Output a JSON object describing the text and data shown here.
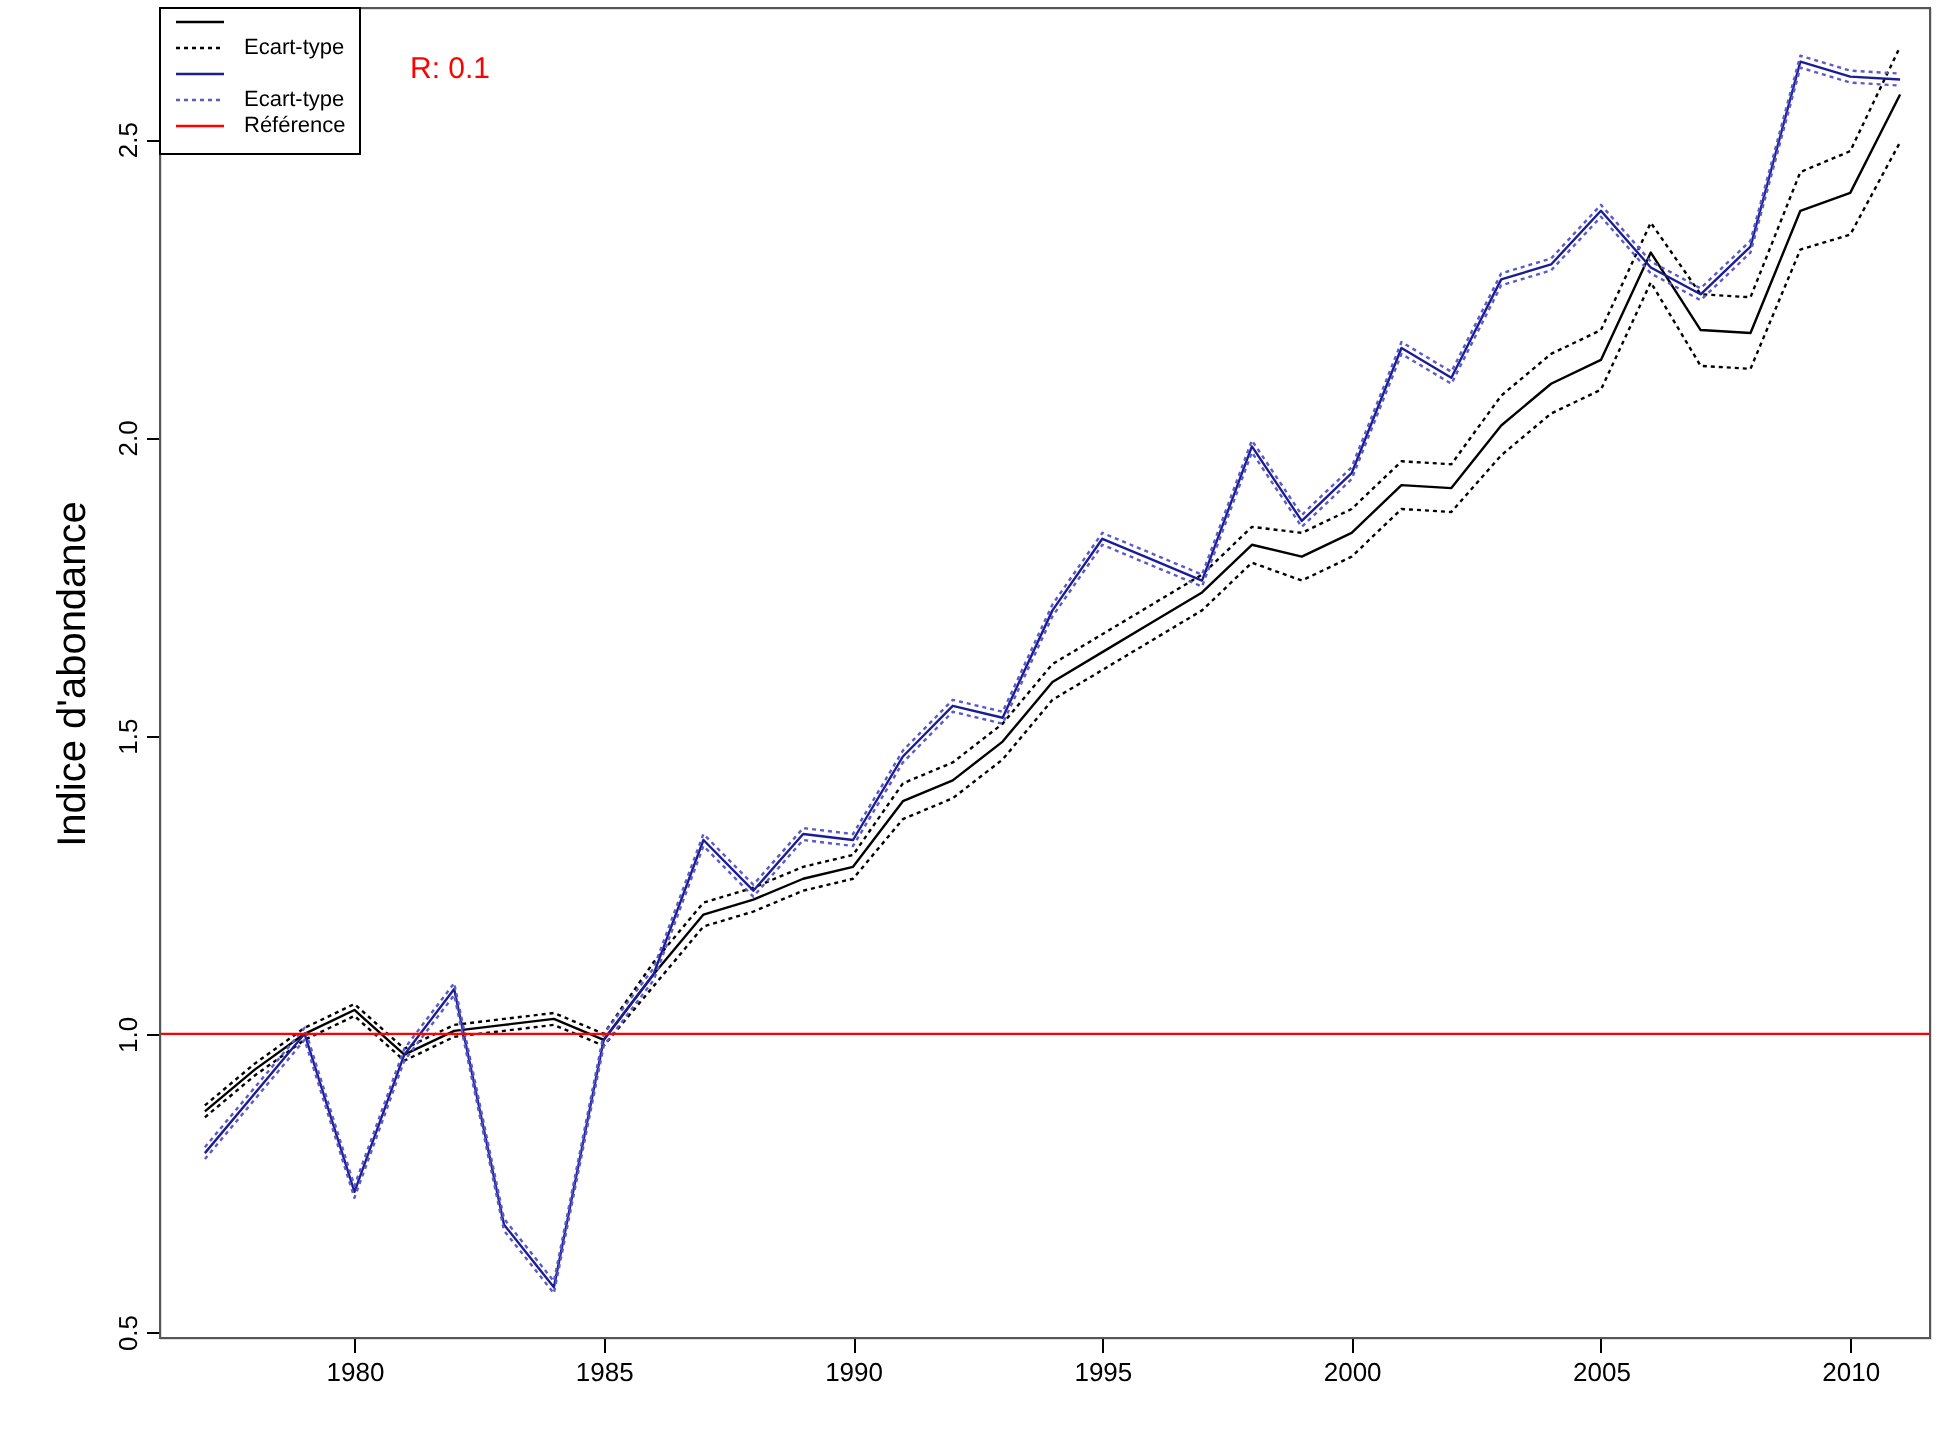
{
  "chart_data": {
    "type": "line",
    "ylabel": "Indice d'abondance",
    "x": [
      1977,
      1978,
      1979,
      1980,
      1981,
      1982,
      1983,
      1984,
      1985,
      1986,
      1987,
      1988,
      1989,
      1990,
      1991,
      1992,
      1993,
      1994,
      1995,
      1996,
      1997,
      1998,
      1999,
      2000,
      2001,
      2002,
      2003,
      2004,
      2005,
      2006,
      2007,
      2008,
      2009,
      2010,
      2011
    ],
    "series": [
      {
        "color": "#000000",
        "line_style": "solid",
        "values": [
          0.87,
          0.94,
          1.0,
          1.04,
          0.965,
          1.005,
          1.015,
          1.025,
          0.99,
          1.1,
          1.2,
          1.225,
          1.26,
          1.28,
          1.39,
          1.425,
          1.49,
          1.59,
          1.64,
          1.69,
          1.74,
          1.82,
          1.8,
          1.84,
          1.92,
          1.915,
          2.02,
          2.09,
          2.13,
          2.31,
          2.18,
          2.175,
          2.38,
          2.41,
          2.575
        ]
      },
      {
        "name": "Ecart-type",
        "color": "#000000",
        "line_style": "dotted",
        "values": [
          0.88,
          0.95,
          1.01,
          1.05,
          0.975,
          1.015,
          1.025,
          1.035,
          1.0,
          1.12,
          1.22,
          1.245,
          1.28,
          1.3,
          1.42,
          1.455,
          1.52,
          1.62,
          1.67,
          1.72,
          1.77,
          1.85,
          1.84,
          1.88,
          1.96,
          1.955,
          2.07,
          2.14,
          2.18,
          2.36,
          2.24,
          2.235,
          2.445,
          2.48,
          2.655
        ]
      },
      {
        "color": "#000000",
        "line_style": "dotted",
        "values": [
          0.86,
          0.93,
          0.99,
          1.03,
          0.955,
          0.995,
          1.005,
          1.015,
          0.98,
          1.08,
          1.18,
          1.205,
          1.24,
          1.26,
          1.36,
          1.395,
          1.46,
          1.56,
          1.61,
          1.66,
          1.71,
          1.79,
          1.76,
          1.8,
          1.88,
          1.875,
          1.97,
          2.04,
          2.08,
          2.26,
          2.12,
          2.115,
          2.315,
          2.34,
          2.495
        ]
      },
      {
        "color": "#1c1c96",
        "line_style": "solid",
        "values": [
          0.8,
          0.9,
          1.0,
          0.735,
          0.965,
          1.075,
          0.68,
          0.575,
          0.99,
          1.1,
          1.325,
          1.24,
          1.335,
          1.325,
          1.465,
          1.55,
          1.53,
          1.71,
          1.83,
          1.795,
          1.76,
          1.985,
          1.86,
          1.94,
          2.15,
          2.1,
          2.265,
          2.29,
          2.38,
          2.285,
          2.24,
          2.32,
          2.63,
          2.605,
          2.6
        ]
      },
      {
        "name": "Ecart-type",
        "color": "#5a5ac8",
        "line_style": "dotted",
        "values": [
          0.81,
          0.91,
          1.01,
          0.745,
          0.975,
          1.085,
          0.69,
          0.585,
          1.0,
          1.11,
          1.335,
          1.25,
          1.345,
          1.335,
          1.475,
          1.56,
          1.54,
          1.72,
          1.84,
          1.805,
          1.77,
          1.995,
          1.87,
          1.95,
          2.16,
          2.11,
          2.275,
          2.3,
          2.39,
          2.295,
          2.25,
          2.33,
          2.64,
          2.615,
          2.61
        ]
      },
      {
        "color": "#5a5ac8",
        "line_style": "dotted",
        "values": [
          0.79,
          0.89,
          0.99,
          0.725,
          0.955,
          1.065,
          0.67,
          0.565,
          0.98,
          1.09,
          1.315,
          1.23,
          1.325,
          1.315,
          1.455,
          1.54,
          1.52,
          1.7,
          1.82,
          1.785,
          1.75,
          1.975,
          1.85,
          1.93,
          2.14,
          2.09,
          2.255,
          2.28,
          2.37,
          2.275,
          2.23,
          2.31,
          2.62,
          2.595,
          2.59
        ]
      }
    ],
    "ref_lines": [
      {
        "axis": "y",
        "value": 1.0,
        "label": "Référence",
        "color": "#ff0000"
      }
    ],
    "annotations": [
      "R: 0.1"
    ],
    "xlim": [
      1976.1,
      2011.6
    ],
    "xticks": [
      1980,
      1985,
      1990,
      1995,
      2000,
      2005,
      2010
    ],
    "ylim": [
      0.49,
      2.72
    ],
    "yticks": [
      0.5,
      {
        "value": 1.0,
        "label": "1.0"
      },
      1.5,
      {
        "value": 2.0,
        "label": "2.0"
      },
      2.5
    ],
    "grid": false,
    "legend": "top left",
    "marker": "none"
  }
}
